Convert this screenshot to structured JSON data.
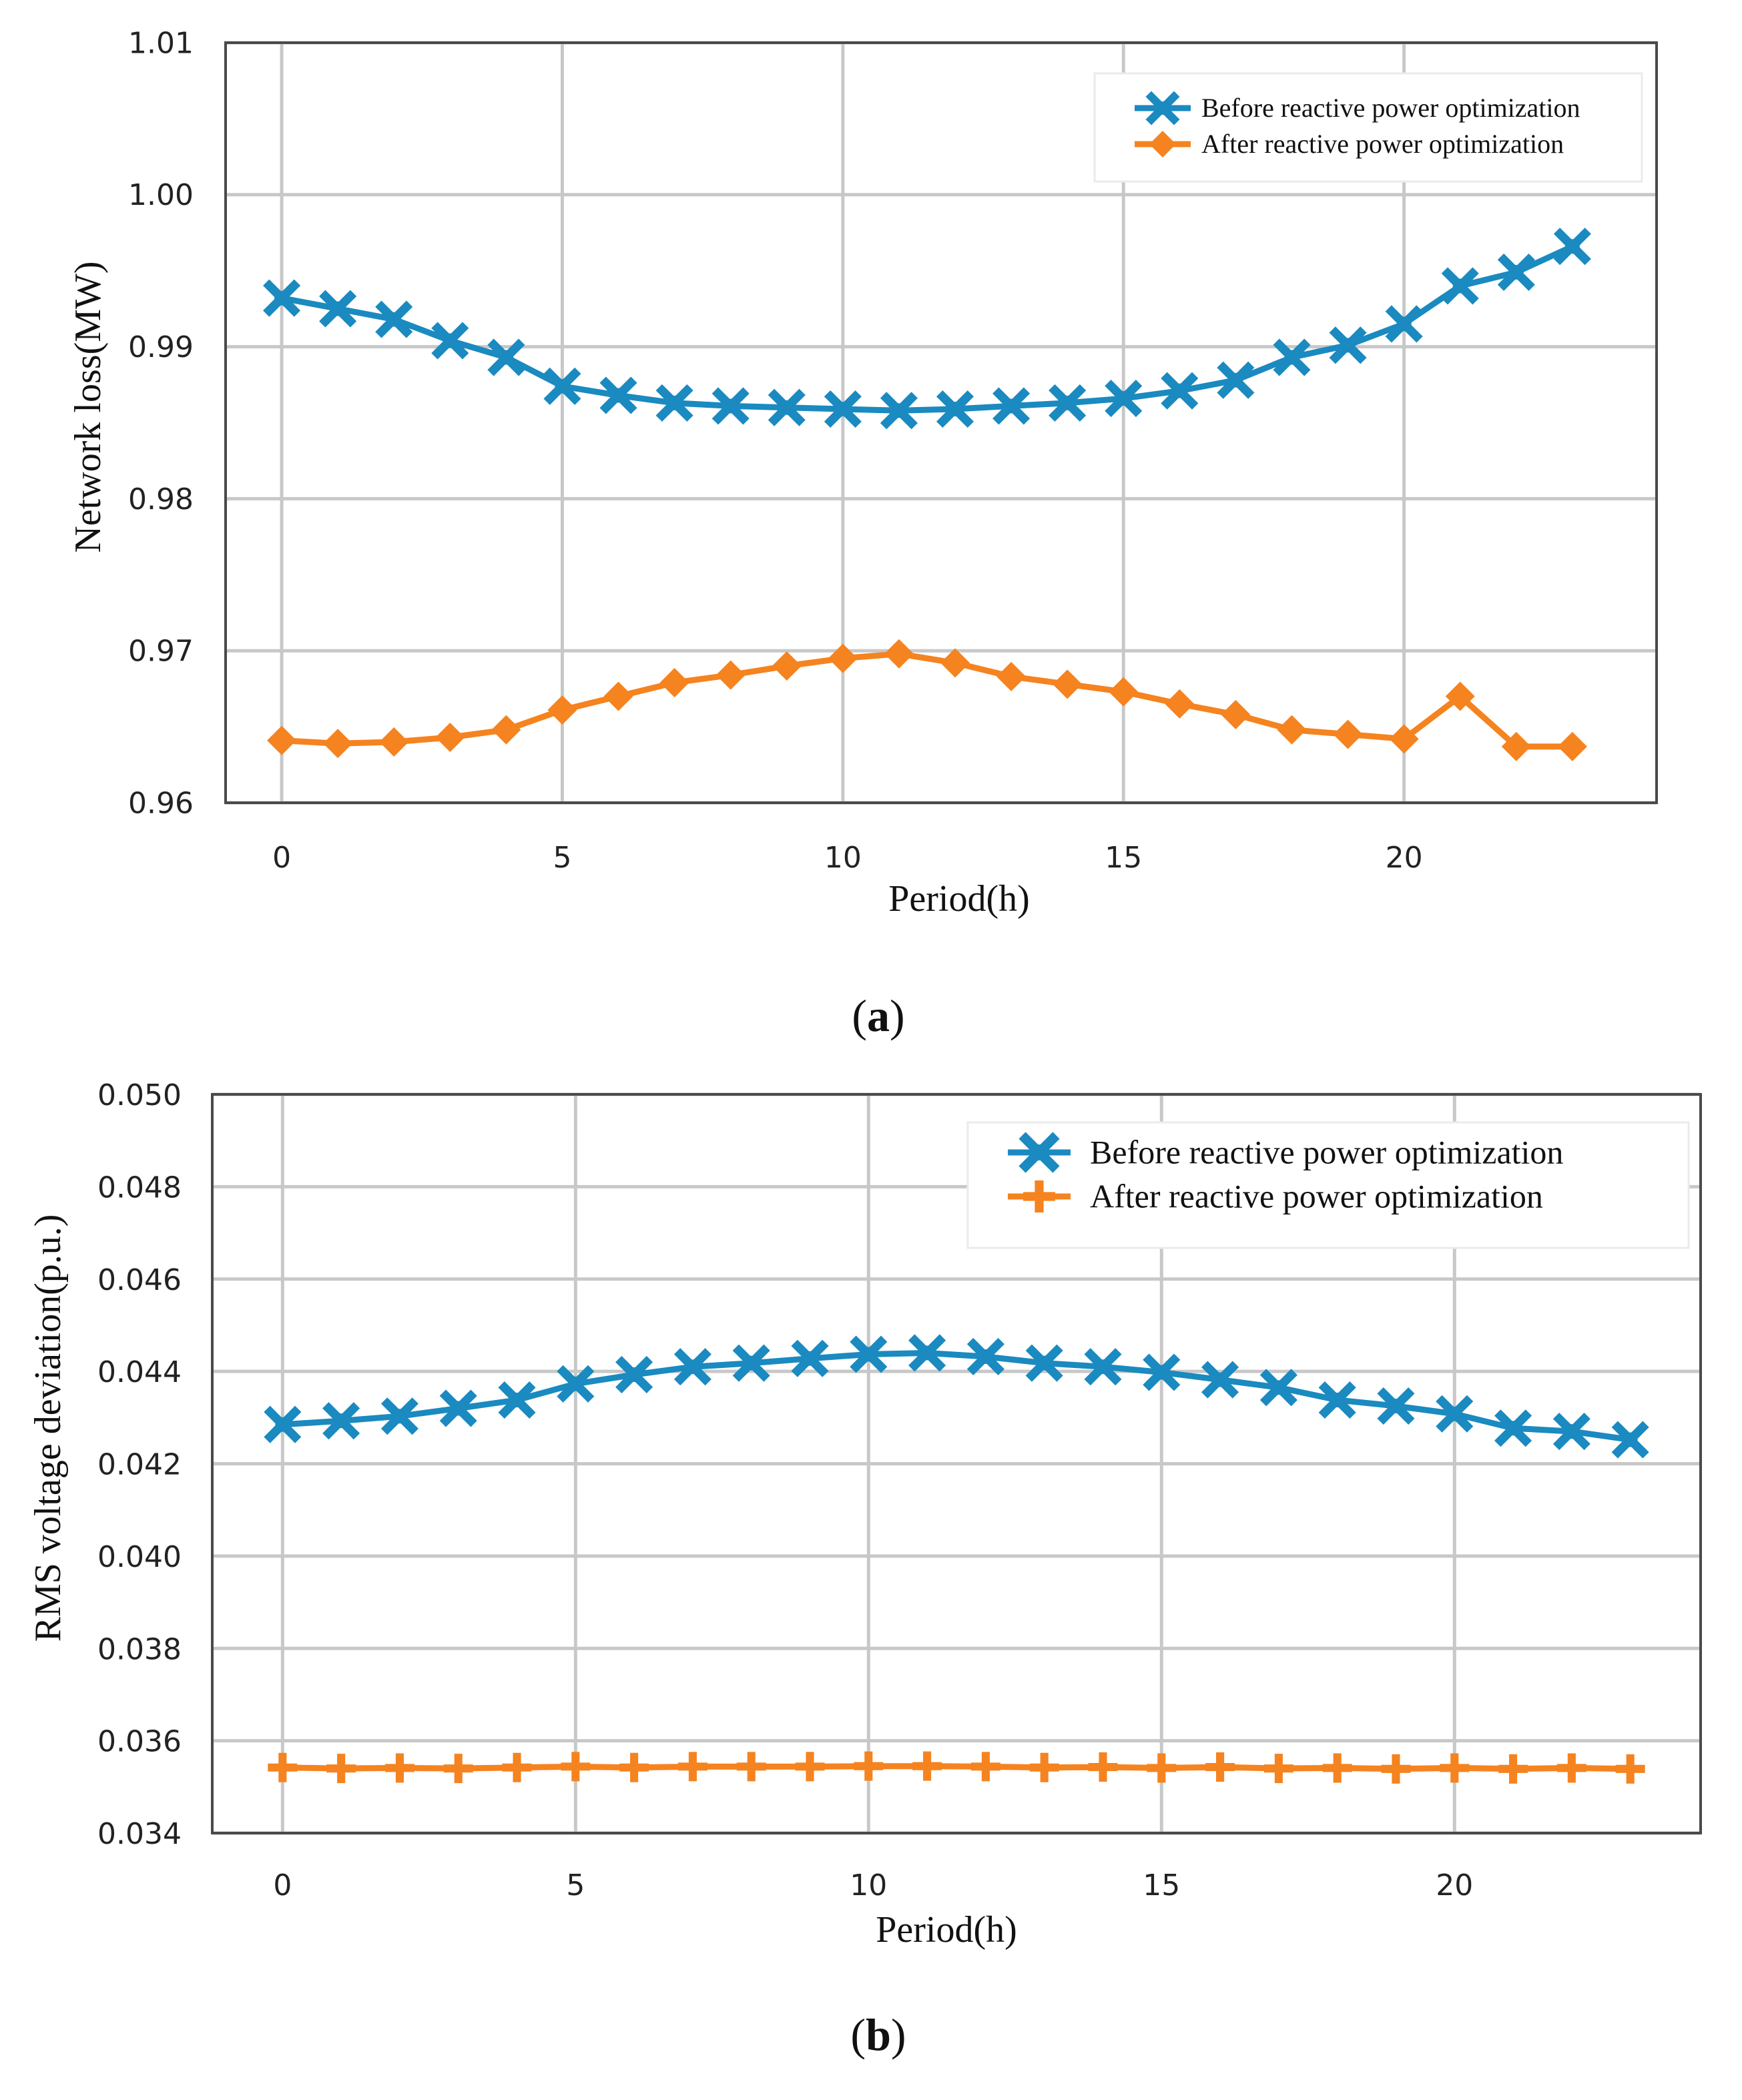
{
  "chart_data": [
    {
      "type": "line",
      "panel": "a",
      "caption_letter": "a",
      "title": "",
      "xlabel": "Period(h)",
      "ylabel": "Network loss(MW)",
      "xlim": [
        -1,
        24.5
      ],
      "ylim": [
        0.96,
        1.01
      ],
      "xticks": [
        0,
        5,
        10,
        15,
        20
      ],
      "yticks": [
        0.96,
        0.97,
        0.98,
        0.99,
        1.0,
        1.01
      ],
      "ytick_labels": [
        "0.96",
        "0.97",
        "0.98",
        "0.99",
        "1.00",
        "1.01"
      ],
      "legend_position": "top-right",
      "x": [
        0,
        1,
        2,
        3,
        4,
        5,
        6,
        7,
        8,
        9,
        10,
        11,
        12,
        13,
        14,
        15,
        16,
        17,
        18,
        19,
        20,
        21,
        22,
        23
      ],
      "series": [
        {
          "name": "Before reactive power optimization",
          "color": "#1a8ac0",
          "marker": "x-cross",
          "values": [
            0.9932,
            0.9925,
            0.9918,
            0.9904,
            0.9893,
            0.9874,
            0.9868,
            0.9863,
            0.9861,
            0.986,
            0.9859,
            0.9858,
            0.9859,
            0.9861,
            0.9863,
            0.9866,
            0.9871,
            0.9878,
            0.9893,
            0.9901,
            0.9915,
            0.994,
            0.9949,
            0.9966
          ]
        },
        {
          "name": "After reactive power optimization",
          "color": "#f5831f",
          "marker": "diamond",
          "values": [
            0.9641,
            0.9639,
            0.964,
            0.9643,
            0.9648,
            0.9661,
            0.967,
            0.9679,
            0.9684,
            0.969,
            0.9695,
            0.9698,
            0.9692,
            0.9683,
            0.9678,
            0.9673,
            0.9665,
            0.9658,
            0.9648,
            0.9645,
            0.9642,
            0.967,
            0.9637,
            0.9637
          ]
        }
      ]
    },
    {
      "type": "line",
      "panel": "b",
      "caption_letter": "b",
      "title": "",
      "xlabel": "Period(h)",
      "ylabel": "RMS voltage deviation(p.u.)",
      "xlim": [
        -1.2,
        24.2
      ],
      "ylim": [
        0.034,
        0.05
      ],
      "xticks": [
        0,
        5,
        10,
        15,
        20
      ],
      "yticks": [
        0.034,
        0.036,
        0.038,
        0.04,
        0.042,
        0.044,
        0.046,
        0.048,
        0.05
      ],
      "ytick_labels": [
        "0.034",
        "0.036",
        "0.038",
        "0.040",
        "0.042",
        "0.044",
        "0.046",
        "0.048",
        "0.050"
      ],
      "legend_position": "top-right",
      "x": [
        0,
        1,
        2,
        3,
        4,
        5,
        6,
        7,
        8,
        9,
        10,
        11,
        12,
        13,
        14,
        15,
        16,
        17,
        18,
        19,
        20,
        21,
        22,
        23
      ],
      "series": [
        {
          "name": "Before reactive power optimization",
          "color": "#1a8ac0",
          "marker": "x-cross",
          "values": [
            0.04285,
            0.04293,
            0.04303,
            0.0432,
            0.04338,
            0.04373,
            0.04393,
            0.0441,
            0.04418,
            0.04428,
            0.04437,
            0.0444,
            0.04432,
            0.04418,
            0.0441,
            0.04398,
            0.04382,
            0.04365,
            0.04338,
            0.04325,
            0.04308,
            0.04277,
            0.0427,
            0.04252
          ]
        },
        {
          "name": "After reactive power optimization",
          "color": "#f5831f",
          "marker": "plus",
          "values": [
            0.03542,
            0.0354,
            0.03541,
            0.0354,
            0.03542,
            0.03544,
            0.03542,
            0.03544,
            0.03544,
            0.03544,
            0.03545,
            0.03545,
            0.03544,
            0.03542,
            0.03543,
            0.03541,
            0.03543,
            0.0354,
            0.03541,
            0.03539,
            0.03541,
            0.03539,
            0.03541,
            0.03539
          ]
        }
      ]
    }
  ]
}
